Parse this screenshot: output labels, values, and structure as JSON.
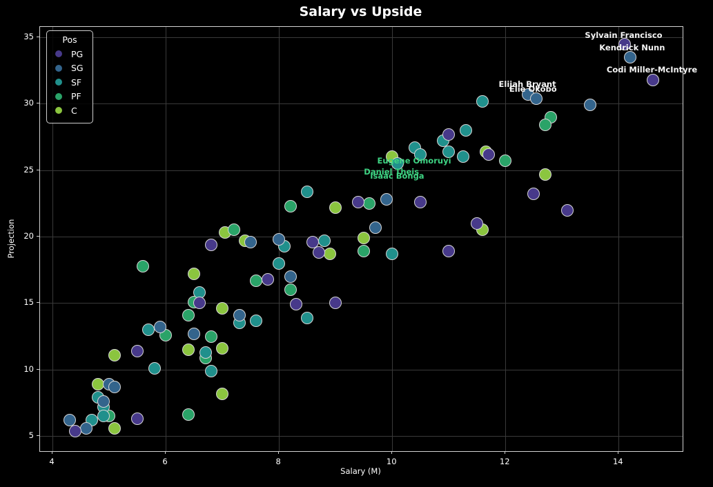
{
  "figure": {
    "background_color": "#000000",
    "text_color": "#ffffff",
    "grid_color": "#3a3a3a",
    "spine_color": "#d4d4d4",
    "marker_edge_color": "#d6d6d6"
  },
  "chart_data": {
    "type": "scatter",
    "title": "Salary vs Upside",
    "xlabel": "Salary (M)",
    "ylabel": "Projection",
    "xlim": [
      3.78,
      15.13
    ],
    "ylim": [
      3.87,
      35.78
    ],
    "xticks": [
      4,
      6,
      8,
      10,
      12,
      14
    ],
    "yticks": [
      5,
      10,
      15,
      20,
      25,
      30,
      35
    ],
    "grid": true,
    "legend": {
      "title": "Pos",
      "position": "upper-left"
    },
    "series": [
      {
        "name": "PG",
        "color": "#47398a",
        "points": [
          [
            14.1,
            34.5
          ],
          [
            14.6,
            31.8
          ],
          [
            11.0,
            27.7
          ],
          [
            11.7,
            26.2
          ],
          [
            12.5,
            23.2
          ],
          [
            13.1,
            22.0
          ],
          [
            10.5,
            22.6
          ],
          [
            9.4,
            22.6
          ],
          [
            11.5,
            21.0
          ],
          [
            11.0,
            18.9
          ],
          [
            8.6,
            19.6
          ],
          [
            8.7,
            18.8
          ],
          [
            7.8,
            16.8
          ],
          [
            6.8,
            19.4
          ],
          [
            6.6,
            15.0
          ],
          [
            8.3,
            14.9
          ],
          [
            9.0,
            15.0
          ],
          [
            5.5,
            11.4
          ],
          [
            5.5,
            6.3
          ],
          [
            4.4,
            5.4
          ]
        ]
      },
      {
        "name": "SG",
        "color": "#33648c",
        "points": [
          [
            14.2,
            33.5
          ],
          [
            12.4,
            30.7
          ],
          [
            12.55,
            30.4
          ],
          [
            13.5,
            29.9
          ],
          [
            9.9,
            22.8
          ],
          [
            9.7,
            20.7
          ],
          [
            8.0,
            19.8
          ],
          [
            7.5,
            19.6
          ],
          [
            8.2,
            17.0
          ],
          [
            7.3,
            14.1
          ],
          [
            5.9,
            13.2
          ],
          [
            6.5,
            12.7
          ],
          [
            5.0,
            8.9
          ],
          [
            5.1,
            8.7
          ],
          [
            4.9,
            7.6
          ],
          [
            4.3,
            6.2
          ],
          [
            4.6,
            5.6
          ]
        ]
      },
      {
        "name": "SF",
        "color": "#20908c",
        "points": [
          [
            11.6,
            30.2
          ],
          [
            11.3,
            28.0
          ],
          [
            10.9,
            27.2
          ],
          [
            10.4,
            26.7
          ],
          [
            10.5,
            26.2
          ],
          [
            11.0,
            26.4
          ],
          [
            11.25,
            26.0
          ],
          [
            10.1,
            25.5
          ],
          [
            8.5,
            23.4
          ],
          [
            8.8,
            19.7
          ],
          [
            8.1,
            19.3
          ],
          [
            8.0,
            18.0
          ],
          [
            10.0,
            18.7
          ],
          [
            6.6,
            15.8
          ],
          [
            8.5,
            13.9
          ],
          [
            7.3,
            13.5
          ],
          [
            7.6,
            13.7
          ],
          [
            5.7,
            13.0
          ],
          [
            6.7,
            11.3
          ],
          [
            5.8,
            10.1
          ],
          [
            6.8,
            9.9
          ],
          [
            4.8,
            7.9
          ],
          [
            4.9,
            7.2
          ],
          [
            4.9,
            6.5
          ],
          [
            4.7,
            6.2
          ]
        ]
      },
      {
        "name": "PF",
        "color": "#2aa368",
        "points": [
          [
            12.8,
            29.0
          ],
          [
            12.7,
            28.4
          ],
          [
            12.0,
            25.7
          ],
          [
            9.6,
            22.5
          ],
          [
            8.2,
            22.3
          ],
          [
            9.5,
            18.9
          ],
          [
            7.2,
            20.5
          ],
          [
            5.6,
            17.8
          ],
          [
            7.6,
            16.7
          ],
          [
            8.2,
            16.0
          ],
          [
            6.5,
            15.1
          ],
          [
            6.4,
            14.1
          ],
          [
            6.0,
            12.6
          ],
          [
            6.8,
            12.5
          ],
          [
            6.7,
            10.9
          ],
          [
            6.4,
            6.6
          ],
          [
            5.0,
            6.5
          ]
        ]
      },
      {
        "name": "C",
        "color": "#8bc53f",
        "points": [
          [
            11.66,
            26.4
          ],
          [
            12.7,
            24.7
          ],
          [
            10.0,
            26.0
          ],
          [
            11.6,
            20.5
          ],
          [
            9.0,
            22.2
          ],
          [
            9.5,
            19.9
          ],
          [
            7.4,
            19.7
          ],
          [
            7.05,
            20.3
          ],
          [
            8.9,
            18.7
          ],
          [
            6.5,
            17.2
          ],
          [
            7.0,
            14.6
          ],
          [
            7.0,
            11.6
          ],
          [
            6.4,
            11.5
          ],
          [
            5.1,
            11.1
          ],
          [
            7.0,
            8.2
          ],
          [
            4.8,
            8.9
          ],
          [
            5.1,
            5.6
          ]
        ]
      }
    ],
    "annotations": [
      {
        "text": "Sylvain Francisco",
        "x": 14.1,
        "y": 35.1,
        "color": "#f5f5f5"
      },
      {
        "text": "Kendrick Nunn",
        "x": 14.25,
        "y": 34.15,
        "color": "#f5f5f5"
      },
      {
        "text": "Codi Miller-McIntyre",
        "x": 14.6,
        "y": 32.5,
        "color": "#f5f5f5"
      },
      {
        "text": "Elijah Bryant",
        "x": 12.4,
        "y": 31.4,
        "color": "#f5f5f5"
      },
      {
        "text": "Elie Okobo",
        "x": 12.5,
        "y": 31.05,
        "color": "#f5f5f5"
      },
      {
        "text": "Eugene Omoruyi",
        "x": 10.4,
        "y": 25.65,
        "color": "#3ed383"
      },
      {
        "text": "Daniel Theis",
        "x": 10.0,
        "y": 24.85,
        "color": "#3ed383"
      },
      {
        "text": "Isaac Bonga",
        "x": 10.1,
        "y": 24.5,
        "color": "#3ed383"
      }
    ]
  }
}
